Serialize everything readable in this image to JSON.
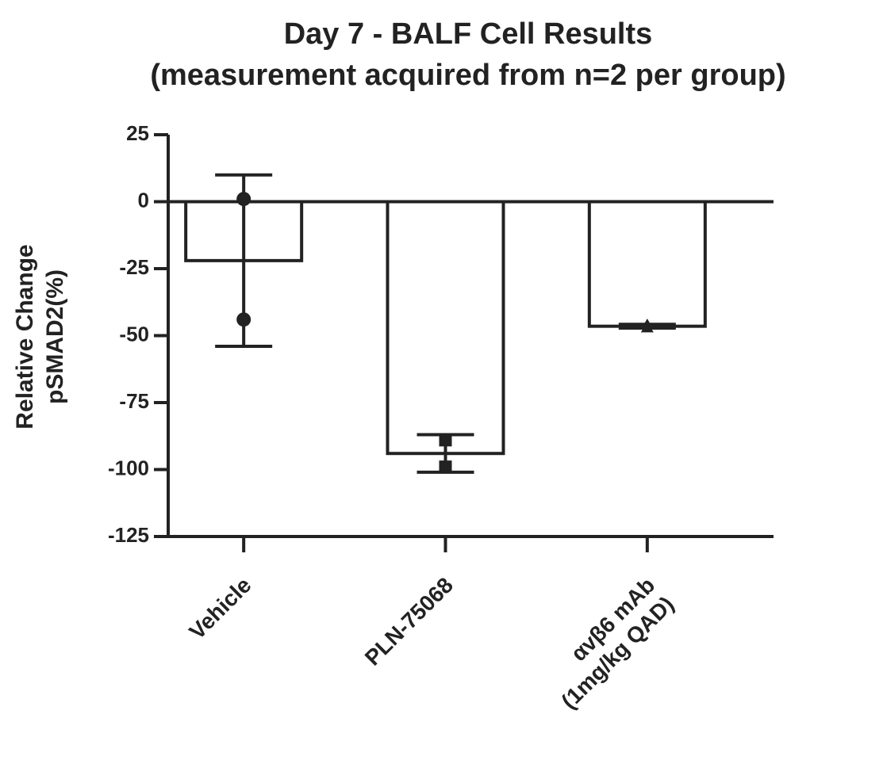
{
  "chart_data": {
    "type": "bar",
    "title": "Day 7 - BALF Cell Results",
    "subtitle": "(measurement acquired from n=2 per group)",
    "ylabel": [
      "Relative Change",
      "pSMAD2(%)"
    ],
    "categories": [
      [
        "Vehicle"
      ],
      [
        "PLN-75068"
      ],
      [
        "αvβ6 mAb",
        "(1mg/kg QAD)"
      ]
    ],
    "values": [
      -22,
      -94,
      -46.5
    ],
    "errors": [
      32,
      7,
      0.7
    ],
    "points": [
      [
        1,
        -44
      ],
      [
        -89,
        -99
      ],
      [
        -46,
        -47
      ]
    ],
    "markers": [
      "circle",
      "square",
      "triangle"
    ],
    "color": "#ffffff",
    "edge_color": "#222222",
    "ylim": [
      -125,
      25
    ],
    "yticks": [
      25,
      0,
      -25,
      -50,
      -75,
      -100,
      -125
    ]
  }
}
